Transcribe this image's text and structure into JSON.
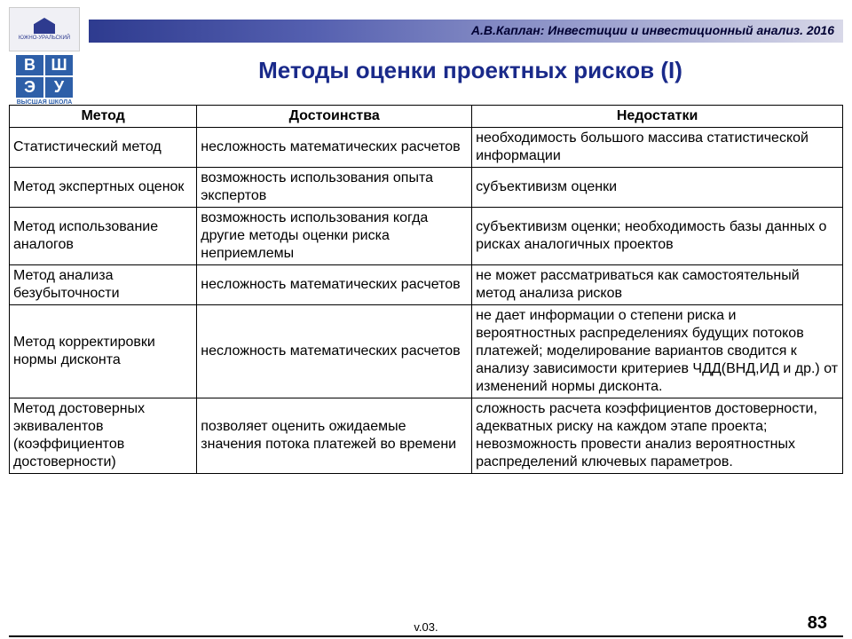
{
  "header": {
    "text": "А.В.Каплан: Инвестиции и инвестиционный анализ. 2016"
  },
  "logo_top": {
    "label": "ЮЖНО-УРАЛЬСКИЙ"
  },
  "logo_bottom": {
    "cells": [
      "В",
      "Ш",
      "Э",
      "У"
    ],
    "label": "ВЫСШАЯ ШКОЛА"
  },
  "title": "Методы оценки проектных рисков (I)",
  "table": {
    "columns": [
      "Метод",
      "Достоинства",
      "Недостатки"
    ],
    "rows": [
      [
        "Статистический метод",
        "несложность математических расчетов",
        "необходимость большого массива статистической информации"
      ],
      [
        "Метод экспертных оценок",
        "возможность использования опыта экспертов",
        "субъективизм оценки"
      ],
      [
        "Метод использование аналогов",
        "возможность использования когда другие методы оценки риска неприемлемы",
        "субъективизм оценки; необходимость базы данных о рисках аналогичных проектов"
      ],
      [
        "Метод анализа безубыточности",
        "несложность математических расчетов",
        "не может рассматриваться как самостоятельный метод анализа рисков"
      ],
      [
        "Метод корректировки нормы дисконта",
        "несложность математических расчетов",
        "не дает информации о степени риска и вероятностных распределениях будущих потоков платежей; моделирование вариантов сводится к анализу зависимости критериев ЧДД(ВНД,ИД и др.) от изменений нормы дисконта."
      ],
      [
        "Метод достоверных эквивалентов (коэффициентов достоверности)",
        "позволяет оценить ожидаемые значения потока платежей во времени",
        "сложность расчета коэффициентов достоверности, адекватных риску на каждом этапе проекта; невозможность провести анализ вероятностных распределений ключевых параметров."
      ]
    ]
  },
  "footer": {
    "version": "v.03.",
    "page": "83"
  },
  "colors": {
    "title": "#1a2a8a",
    "header_dark": "#2e3b8f",
    "logo_blue": "#2e5fa8",
    "text": "#000000",
    "border": "#000000",
    "background": "#ffffff"
  }
}
